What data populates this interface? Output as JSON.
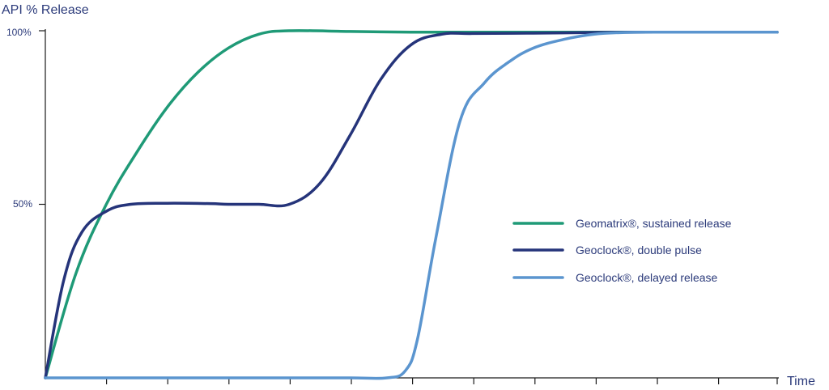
{
  "chart_data": {
    "type": "line",
    "ylabel": "API % Release",
    "xlabel": "Time",
    "yticks": [
      "100%",
      "50%"
    ],
    "ytick_values": [
      100,
      50
    ],
    "ylim": [
      0,
      100
    ],
    "xlim": [
      0,
      12
    ],
    "x_tick_count": 12,
    "grid": false,
    "legend_placement": "center-right",
    "series": [
      {
        "name": "Geomatrix®, sustained release",
        "color": "#1f9a77",
        "x": [
          0,
          0.5,
          1,
          1.5,
          2,
          2.5,
          3,
          3.5,
          4,
          5,
          6,
          7,
          8,
          9,
          10,
          11,
          12
        ],
        "y": [
          0,
          30,
          50,
          65,
          78,
          88,
          95,
          99,
          100,
          99.8,
          99.6,
          99.6,
          99.6,
          99.6,
          99.6,
          99.6,
          99.6
        ]
      },
      {
        "name": "Geoclock®, double pulse",
        "color": "#25347a",
        "x": [
          0,
          0.3,
          0.6,
          1,
          1.4,
          2,
          2.7,
          3,
          3.5,
          4,
          4.5,
          5,
          5.5,
          6,
          6.5,
          7,
          8,
          9,
          10,
          11,
          12
        ],
        "y": [
          0,
          28,
          42,
          48,
          50,
          50.3,
          50.2,
          50,
          50,
          50,
          56,
          70,
          86,
          96,
          99,
          99.2,
          99.3,
          99.5,
          99.6,
          99.6,
          99.6
        ]
      },
      {
        "name": "Geoclock®, delayed release",
        "color": "#5b95cf",
        "x": [
          0,
          1,
          2,
          3,
          4,
          5,
          5.6,
          5.9,
          6.1,
          6.4,
          6.8,
          7.2,
          7.6,
          8,
          8.5,
          9,
          9.5,
          10,
          11,
          12
        ],
        "y": [
          0,
          0,
          0,
          0,
          0,
          0,
          0,
          2,
          11,
          40,
          74,
          85,
          91,
          95,
          97.5,
          99,
          99.5,
          99.6,
          99.6,
          99.6
        ]
      }
    ]
  }
}
